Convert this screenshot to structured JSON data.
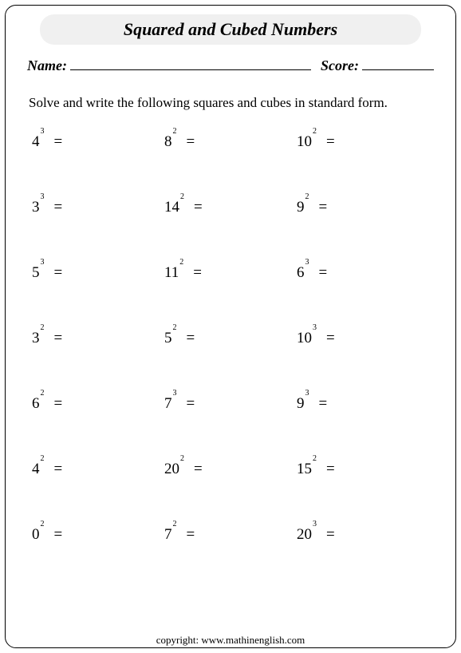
{
  "title": "Squared and Cubed Numbers",
  "labels": {
    "name": "Name:",
    "score": "Score:"
  },
  "instructions": "Solve and write the following squares and cubes in standard form.",
  "equals": "=",
  "problems": [
    {
      "base": "4",
      "exp": "3"
    },
    {
      "base": "8",
      "exp": "2"
    },
    {
      "base": "10",
      "exp": "2"
    },
    {
      "base": "3",
      "exp": "3"
    },
    {
      "base": "14",
      "exp": "2"
    },
    {
      "base": "9",
      "exp": "2"
    },
    {
      "base": "5",
      "exp": "3"
    },
    {
      "base": "11",
      "exp": "2"
    },
    {
      "base": "6",
      "exp": "3"
    },
    {
      "base": "3",
      "exp": "2"
    },
    {
      "base": "5",
      "exp": "2"
    },
    {
      "base": "10",
      "exp": "3"
    },
    {
      "base": "6",
      "exp": "2"
    },
    {
      "base": "7",
      "exp": "3"
    },
    {
      "base": "9",
      "exp": "3"
    },
    {
      "base": "4",
      "exp": "2"
    },
    {
      "base": "20",
      "exp": "2"
    },
    {
      "base": "15",
      "exp": "2"
    },
    {
      "base": "0",
      "exp": "2"
    },
    {
      "base": "7",
      "exp": "2"
    },
    {
      "base": "20",
      "exp": "3"
    }
  ],
  "copyright": "copyright:   www.mathinenglish.com",
  "style": {
    "page_bg": "#ffffff",
    "text_color": "#000000",
    "title_bg": "#f0f0f0",
    "border_color": "#000000",
    "title_fontsize": 22,
    "body_fontsize": 17,
    "problem_fontsize": 19,
    "exp_fontsize": 10,
    "border_radius": 14,
    "columns": 3,
    "rows": 7
  }
}
